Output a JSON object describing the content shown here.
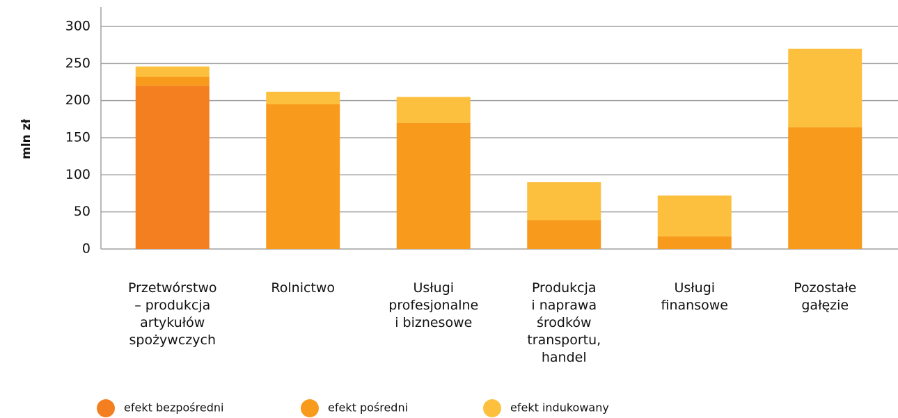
{
  "chart_data": {
    "type": "stacked_bar",
    "y_label": "mln zł",
    "categories": [
      "Przetwórstwo\n– produkcja\nartykułów\nspożywczych",
      "Rolnictwo",
      "Usługi\nprofesjonalne\ni biznesowe",
      "Produkcja\ni naprawa\nśrodków\ntransportu,\nhandel",
      "Usługi\nfinansowe",
      "Pozostałe\ngałęzie"
    ],
    "series": [
      {
        "name": "efekt bezpośredni",
        "color": "#f47f20",
        "values": [
          220,
          0,
          0,
          0,
          0,
          0
        ]
      },
      {
        "name": "efekt pośredni",
        "color": "#f89a1c",
        "values": [
          12,
          195,
          170,
          39,
          17,
          164
        ]
      },
      {
        "name": "efekt indukowany",
        "color": "#fcc03e",
        "values": [
          14,
          17,
          35,
          51,
          55,
          106
        ]
      }
    ],
    "ylim": [
      0,
      300
    ],
    "yticks": [
      0,
      50,
      100,
      150,
      200,
      250,
      300
    ],
    "grid": true
  }
}
